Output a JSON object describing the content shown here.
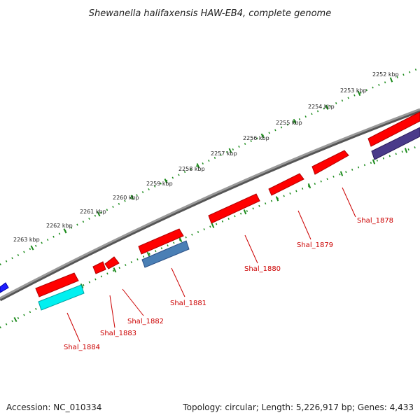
{
  "title": "Shewanella halifaxensis HAW-EB4, complete genome",
  "footer": {
    "accession": "Accession: NC_010334",
    "summary": "Topology: circular; Length: 5,226,917 bp; Genes: 4,433"
  },
  "colors": {
    "backbone": "#8c8c8c",
    "ticks": "#1a8a1a",
    "label": "#cc0000",
    "gene_red": "#ff0000",
    "gene_blue": "#1e1eff",
    "gene_cyan": "#00f0f0",
    "gene_steel": "#4a7fb5",
    "gene_purple": "#4a3a8a"
  },
  "kbp_labels": [
    "2252 kbp",
    "2253 kbp",
    "2254 kbp",
    "2255 kbp",
    "2256 kbp",
    "2257 kbp",
    "2258 kbp",
    "2259 kbp",
    "2260 kbp",
    "2261 kbp",
    "2262 kbp",
    "2263 kbp"
  ],
  "gene_labels": [
    "Shal_1878",
    "Shal_1879",
    "Shal_1880",
    "Shal_1881",
    "Shal_1882",
    "Shal_1883",
    "Shal_1884"
  ]
}
